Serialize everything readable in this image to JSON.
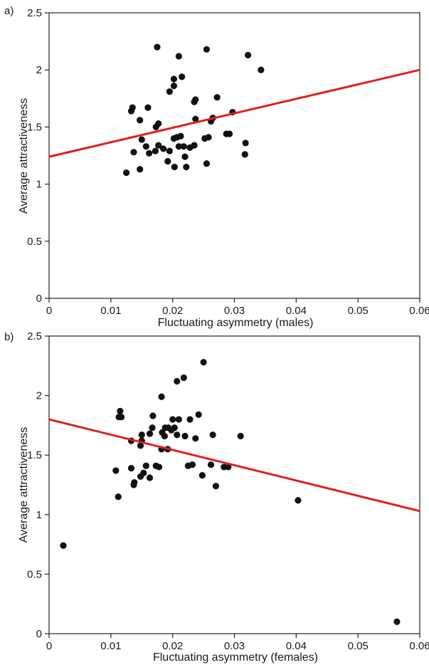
{
  "chart_data": [
    {
      "type": "scatter",
      "panel_label": "a)",
      "title": "",
      "xlabel": "Fluctuating asymmetry (males)",
      "ylabel": "Average attractiveness",
      "xlim": [
        0,
        0.06
      ],
      "ylim": [
        0,
        2.5
      ],
      "xticks": [
        0,
        0.01,
        0.02,
        0.03,
        0.04,
        0.05,
        0.06
      ],
      "xtick_labels": [
        "0",
        "0.01",
        "0.02",
        "0.03",
        "0.04",
        "0.05",
        "0.06"
      ],
      "yticks": [
        0,
        0.5,
        1,
        1.5,
        2,
        2.5
      ],
      "ytick_labels": [
        "0",
        "0.5",
        "1",
        "1.5",
        "2",
        "2.5"
      ],
      "grid": false,
      "fit_line": {
        "x": [
          0,
          0.06
        ],
        "y": [
          1.24,
          2.0
        ],
        "color": "#e0201c"
      },
      "points": [
        [
          0.0175,
          2.2
        ],
        [
          0.0255,
          2.18
        ],
        [
          0.0322,
          2.13
        ],
        [
          0.021,
          2.12
        ],
        [
          0.0343,
          2.0
        ],
        [
          0.0215,
          1.94
        ],
        [
          0.0202,
          1.92
        ],
        [
          0.0202,
          1.86
        ],
        [
          0.0195,
          1.81
        ],
        [
          0.0272,
          1.76
        ],
        [
          0.0237,
          1.74
        ],
        [
          0.0235,
          1.72
        ],
        [
          0.0135,
          1.67
        ],
        [
          0.016,
          1.67
        ],
        [
          0.0133,
          1.64
        ],
        [
          0.0297,
          1.63
        ],
        [
          0.0265,
          1.58
        ],
        [
          0.0147,
          1.56
        ],
        [
          0.0237,
          1.57
        ],
        [
          0.0262,
          1.55
        ],
        [
          0.0177,
          1.53
        ],
        [
          0.0173,
          1.5
        ],
        [
          0.0213,
          1.42
        ],
        [
          0.0207,
          1.41
        ],
        [
          0.0202,
          1.4
        ],
        [
          0.0252,
          1.4
        ],
        [
          0.0258,
          1.41
        ],
        [
          0.015,
          1.39
        ],
        [
          0.0287,
          1.44
        ],
        [
          0.0292,
          1.44
        ],
        [
          0.0157,
          1.33
        ],
        [
          0.0177,
          1.34
        ],
        [
          0.0185,
          1.31
        ],
        [
          0.0195,
          1.29
        ],
        [
          0.021,
          1.33
        ],
        [
          0.0218,
          1.33
        ],
        [
          0.0228,
          1.32
        ],
        [
          0.0235,
          1.34
        ],
        [
          0.0162,
          1.27
        ],
        [
          0.0172,
          1.29
        ],
        [
          0.0137,
          1.28
        ],
        [
          0.022,
          1.24
        ],
        [
          0.0318,
          1.36
        ],
        [
          0.0317,
          1.26
        ],
        [
          0.0192,
          1.2
        ],
        [
          0.0203,
          1.15
        ],
        [
          0.0222,
          1.15
        ],
        [
          0.0147,
          1.13
        ],
        [
          0.0125,
          1.1
        ],
        [
          0.0255,
          1.18
        ]
      ]
    },
    {
      "type": "scatter",
      "panel_label": "b)",
      "title": "",
      "xlabel": "Fluctuating asymmetry (females)",
      "ylabel": "Average attractiveness",
      "xlim": [
        0,
        0.06
      ],
      "ylim": [
        0,
        2.5
      ],
      "xticks": [
        0,
        0.01,
        0.02,
        0.03,
        0.04,
        0.05,
        0.06
      ],
      "xtick_labels": [
        "0",
        "0.01",
        "0.02",
        "0.03",
        "0.04",
        "0.05",
        "0.06"
      ],
      "yticks": [
        0,
        0.5,
        1,
        1.5,
        2,
        2.5
      ],
      "ytick_labels": [
        "0",
        "0.5",
        "1",
        "1.5",
        "2",
        "2.5"
      ],
      "grid": false,
      "fit_line": {
        "x": [
          0,
          0.06
        ],
        "y": [
          1.8,
          1.03
        ],
        "color": "#e0201c"
      },
      "points": [
        [
          0.025,
          2.28
        ],
        [
          0.0218,
          2.15
        ],
        [
          0.0207,
          2.12
        ],
        [
          0.0182,
          1.99
        ],
        [
          0.0115,
          1.87
        ],
        [
          0.0113,
          1.82
        ],
        [
          0.0117,
          1.82
        ],
        [
          0.0168,
          1.83
        ],
        [
          0.0242,
          1.84
        ],
        [
          0.02,
          1.8
        ],
        [
          0.021,
          1.8
        ],
        [
          0.0228,
          1.8
        ],
        [
          0.0188,
          1.73
        ],
        [
          0.0193,
          1.73
        ],
        [
          0.0198,
          1.71
        ],
        [
          0.0203,
          1.73
        ],
        [
          0.0167,
          1.73
        ],
        [
          0.0183,
          1.69
        ],
        [
          0.0187,
          1.66
        ],
        [
          0.0163,
          1.68
        ],
        [
          0.015,
          1.67
        ],
        [
          0.0207,
          1.67
        ],
        [
          0.0265,
          1.67
        ],
        [
          0.031,
          1.66
        ],
        [
          0.015,
          1.62
        ],
        [
          0.0133,
          1.62
        ],
        [
          0.0148,
          1.58
        ],
        [
          0.0182,
          1.55
        ],
        [
          0.0192,
          1.55
        ],
        [
          0.0237,
          1.64
        ],
        [
          0.022,
          1.66
        ],
        [
          0.0108,
          1.37
        ],
        [
          0.0133,
          1.39
        ],
        [
          0.0157,
          1.41
        ],
        [
          0.0173,
          1.41
        ],
        [
          0.0178,
          1.4
        ],
        [
          0.0225,
          1.41
        ],
        [
          0.0232,
          1.42
        ],
        [
          0.0262,
          1.42
        ],
        [
          0.0283,
          1.4
        ],
        [
          0.029,
          1.4
        ],
        [
          0.0153,
          1.35
        ],
        [
          0.0148,
          1.32
        ],
        [
          0.0163,
          1.31
        ],
        [
          0.0138,
          1.27
        ],
        [
          0.0137,
          1.25
        ],
        [
          0.0248,
          1.33
        ],
        [
          0.027,
          1.24
        ],
        [
          0.0112,
          1.15
        ],
        [
          0.0403,
          1.12
        ],
        [
          0.0023,
          0.74
        ],
        [
          0.0563,
          0.1
        ]
      ]
    }
  ]
}
